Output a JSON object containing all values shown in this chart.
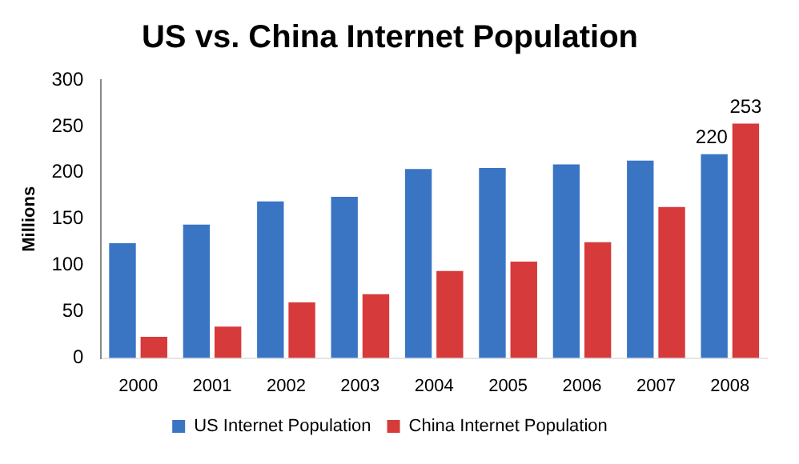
{
  "chart_data": {
    "type": "bar",
    "title": "US vs. China Internet Population",
    "ylabel": "Millions",
    "categories": [
      "2000",
      "2001",
      "2002",
      "2003",
      "2004",
      "2005",
      "2006",
      "2007",
      "2008"
    ],
    "series": [
      {
        "name": "US Internet Population",
        "color": "#3a75c4",
        "values": [
          124,
          144,
          169,
          174,
          204,
          205,
          209,
          213,
          220
        ],
        "value_labels": [
          null,
          null,
          null,
          null,
          null,
          null,
          null,
          null,
          "220"
        ]
      },
      {
        "name": "China Internet Population",
        "color": "#d63a3a",
        "values": [
          23,
          34,
          60,
          69,
          94,
          104,
          125,
          163,
          253
        ],
        "value_labels": [
          null,
          null,
          null,
          null,
          null,
          null,
          null,
          null,
          "253"
        ]
      }
    ],
    "ylim": [
      0,
      300
    ],
    "yticks": [
      0,
      50,
      100,
      150,
      200,
      250,
      300
    ],
    "grid": false,
    "legend": "bottom"
  }
}
